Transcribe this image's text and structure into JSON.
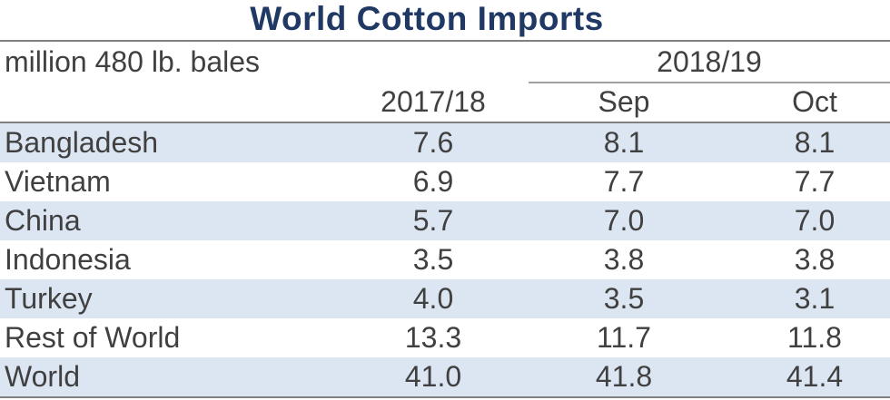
{
  "chart_data": {
    "type": "table",
    "title": "World Cotton Imports",
    "unit_label": "million 480 lb. bales",
    "group_header": "2018/19",
    "columns": [
      "2017/18",
      "Sep",
      "Oct"
    ],
    "rows": [
      {
        "label": "Bangladesh",
        "values": [
          "7.6",
          "8.1",
          "8.1"
        ]
      },
      {
        "label": "Vietnam",
        "values": [
          "6.9",
          "7.7",
          "7.7"
        ]
      },
      {
        "label": "China",
        "values": [
          "5.7",
          "7.0",
          "7.0"
        ]
      },
      {
        "label": "Indonesia",
        "values": [
          "3.5",
          "3.8",
          "3.8"
        ]
      },
      {
        "label": "Turkey",
        "values": [
          "4.0",
          "3.5",
          "3.1"
        ]
      },
      {
        "label": "Rest of World",
        "values": [
          "13.3",
          "11.7",
          "11.8"
        ]
      },
      {
        "label": "World",
        "values": [
          "41.0",
          "41.8",
          "41.4"
        ]
      }
    ]
  },
  "colors": {
    "title": "#1f3864",
    "band": "#dce6f2",
    "rule": "#808080",
    "text": "#404040"
  }
}
